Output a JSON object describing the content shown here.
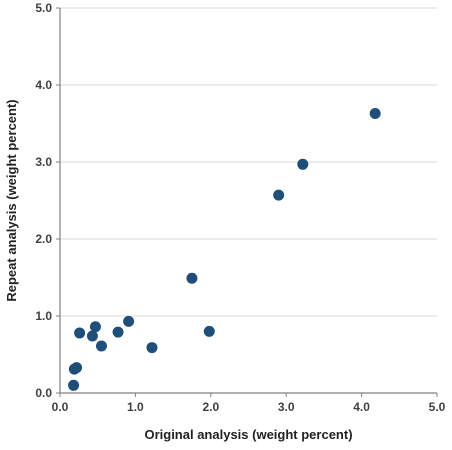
{
  "chart_data": {
    "type": "scatter",
    "title": "",
    "xlabel": "Original analysis (weight percent)",
    "ylabel": "Repeat analysis (weight percent)",
    "xlim": [
      0,
      5
    ],
    "ylim": [
      0,
      5
    ],
    "x_ticks": [
      "0.0",
      "1.0",
      "2.0",
      "3.0",
      "4.0",
      "5.0"
    ],
    "y_ticks": [
      "0.0",
      "1.0",
      "2.0",
      "3.0",
      "4.0",
      "5.0"
    ],
    "grid": "horizontal",
    "legend": "none",
    "marker_color": "#1f4e79",
    "series": [
      {
        "points": [
          {
            "x": 0.18,
            "y": 0.1
          },
          {
            "x": 0.19,
            "y": 0.31
          },
          {
            "x": 0.22,
            "y": 0.33
          },
          {
            "x": 0.26,
            "y": 0.78
          },
          {
            "x": 0.43,
            "y": 0.74
          },
          {
            "x": 0.47,
            "y": 0.86
          },
          {
            "x": 0.55,
            "y": 0.61
          },
          {
            "x": 0.77,
            "y": 0.79
          },
          {
            "x": 0.91,
            "y": 0.93
          },
          {
            "x": 1.22,
            "y": 0.59
          },
          {
            "x": 1.75,
            "y": 1.49
          },
          {
            "x": 1.98,
            "y": 0.8
          },
          {
            "x": 2.9,
            "y": 2.57
          },
          {
            "x": 3.22,
            "y": 2.97
          },
          {
            "x": 4.18,
            "y": 3.63
          }
        ]
      }
    ]
  }
}
